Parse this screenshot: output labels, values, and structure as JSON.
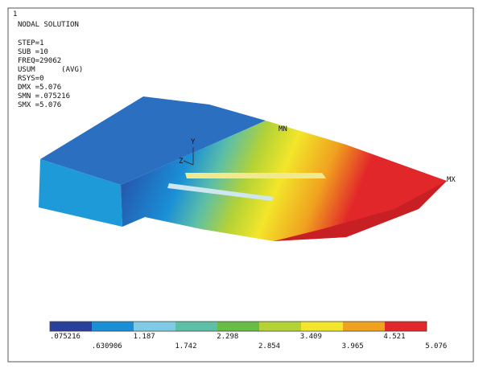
{
  "header": {
    "window_number": "1",
    "lines": [
      "NODAL SOLUTION",
      "STEP=1",
      "SUB =10",
      "FREQ=29062",
      "USUM      (AVG)",
      "RSYS=0",
      "DMX =5.076",
      "SMN =.075216",
      "SMX =5.076"
    ]
  },
  "markers": {
    "max": "MX",
    "min": "MN",
    "axis_y": "Y",
    "axis_z": "Z"
  },
  "legend": {
    "labels": [
      ".075216",
      ".630906",
      "1.187",
      "1.742",
      "2.298",
      "2.854",
      "3.409",
      "3.965",
      "4.521",
      "5.076"
    ],
    "colors": [
      "#2a3e9c",
      "#1a8fd6",
      "#7fcbe4",
      "#5dbfa6",
      "#67bd45",
      "#b4d236",
      "#f2e62a",
      "#f0a21f",
      "#e2272a"
    ]
  }
}
